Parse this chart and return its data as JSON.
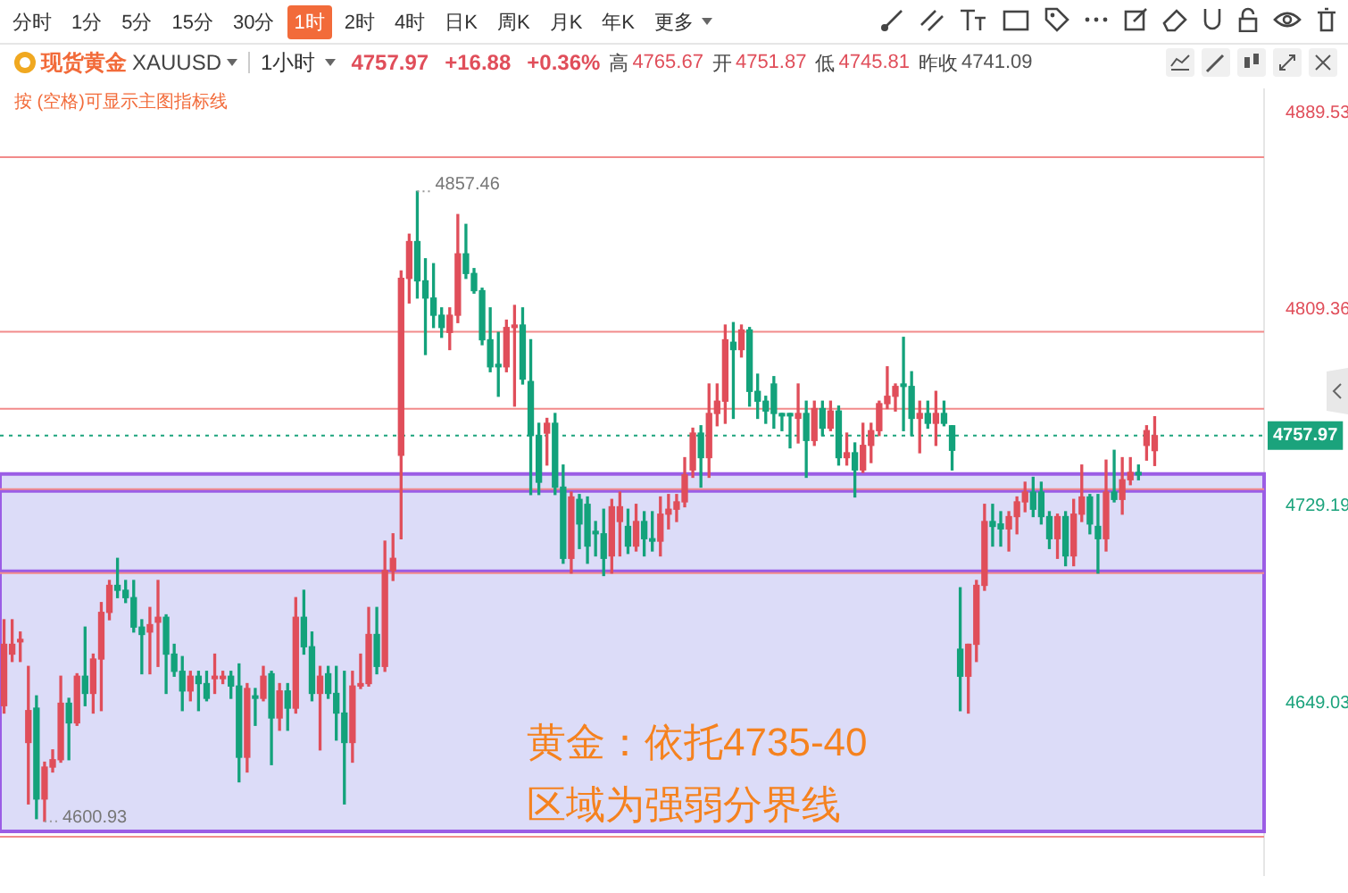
{
  "chart_data": {
    "type": "candlestick",
    "title": "现货黄金 XAUUSD",
    "subtitle": "1小时",
    "annotations": [
      "分时",
      "1分",
      "5分",
      "15分",
      "30分",
      "1时",
      "2时",
      "4时",
      "日K",
      "周K",
      "月K",
      "年K",
      "更多",
      "4757.97",
      "+16.88",
      "+0.36%",
      "高 4765.67",
      "开 4751.87",
      "低 4745.81",
      "昨收 4741.09",
      "按 (空格)可显示主图指标线",
      "黄金：依托4735-40",
      "区域为强弱分界线",
      "4857.46",
      "4600.93"
    ],
    "categories": [
      null,
      null,
      null,
      null,
      null,
      null,
      null,
      null,
      null,
      null,
      null,
      null,
      null,
      null,
      null,
      null,
      null,
      null,
      null,
      null,
      null,
      null,
      null,
      null,
      null,
      null,
      null,
      null,
      null,
      null,
      null,
      null,
      null,
      null,
      null,
      null,
      null,
      null,
      null,
      null,
      null,
      null,
      null,
      null,
      null,
      null,
      null,
      null,
      null,
      null,
      null,
      null,
      null,
      null,
      null,
      null,
      null,
      null,
      null,
      null,
      null,
      null,
      null,
      null,
      null,
      null,
      null,
      null,
      null,
      null,
      null,
      null,
      null,
      null,
      null,
      null,
      null,
      null,
      null,
      null,
      null,
      null,
      null,
      null,
      null,
      null,
      null,
      null,
      null,
      null,
      null,
      null,
      null,
      null,
      null,
      null,
      null,
      null,
      null,
      null,
      null,
      null,
      null,
      null,
      null,
      null,
      null,
      null,
      null,
      null,
      null,
      null,
      null,
      null,
      null,
      null,
      null,
      null,
      null,
      null,
      null,
      null,
      null,
      null,
      null,
      null,
      null,
      null,
      null,
      null,
      null,
      null,
      null,
      null,
      null,
      null,
      null,
      null,
      null,
      null,
      null,
      null,
      null,
      null,
      null,
      null,
      null,
      null,
      null,
      null,
      null,
      null,
      null,
      null,
      null,
      null
    ],
    "ohlc": [
      [
        4648,
        4683,
        4645,
        4673
      ],
      [
        4669,
        4683,
        4666,
        4673
      ],
      [
        4674,
        4678,
        4666,
        4675
      ],
      [
        4633,
        4664,
        4608,
        4646
      ],
      [
        4647,
        4652,
        4602,
        4610
      ],
      [
        4610,
        4625,
        4600.93,
        4623
      ],
      [
        4623,
        4630,
        4621,
        4626
      ],
      [
        4626,
        4660,
        4625,
        4649
      ],
      [
        4649,
        4651,
        4626,
        4641
      ],
      [
        4641,
        4661,
        4640,
        4660
      ],
      [
        4660,
        4680,
        4648,
        4653
      ],
      [
        4653,
        4669,
        4645,
        4667
      ],
      [
        4667,
        4690,
        4646,
        4686
      ],
      [
        4686,
        4699,
        4683,
        4697
      ],
      [
        4697,
        4708,
        4692,
        4695
      ],
      [
        4695,
        4699,
        4690,
        4692
      ],
      [
        4692,
        4699,
        4678,
        4680
      ],
      [
        4680,
        4683,
        4661,
        4677
      ],
      [
        4678,
        4688,
        4661,
        4681
      ],
      [
        4682,
        4699,
        4664,
        4684
      ],
      [
        4684,
        4685,
        4653,
        4669
      ],
      [
        4669,
        4673,
        4660,
        4662
      ],
      [
        4662,
        4668,
        4646,
        4654
      ],
      [
        4654,
        4662,
        4650,
        4660
      ],
      [
        4660,
        4662,
        4646,
        4657
      ],
      [
        4657,
        4662,
        4650,
        4651
      ],
      [
        4659,
        4669,
        4653,
        4660
      ],
      [
        4659,
        4662,
        4657,
        4660
      ],
      [
        4660,
        4662,
        4651,
        4656
      ],
      [
        4656,
        4665,
        4617,
        4627
      ],
      [
        4627,
        4657,
        4621,
        4655
      ],
      [
        4652,
        4655,
        4640,
        4651
      ],
      [
        4651,
        4664,
        4650,
        4660
      ],
      [
        4661,
        4662,
        4624,
        4643
      ],
      [
        4643,
        4657,
        4638,
        4654
      ],
      [
        4654,
        4657,
        4638,
        4647
      ],
      [
        4647,
        4692,
        4645,
        4684
      ],
      [
        4684,
        4695,
        4669,
        4672
      ],
      [
        4672,
        4678,
        4650,
        4653
      ],
      [
        4653,
        4664,
        4630,
        4660
      ],
      [
        4661,
        4664,
        4651,
        4653
      ],
      [
        4653,
        4664,
        4634,
        4645
      ],
      [
        4645,
        4662,
        4608,
        4633
      ],
      [
        4633,
        4662,
        4625,
        4656
      ],
      [
        4656,
        4669,
        4655,
        4657
      ],
      [
        4657,
        4688,
        4656,
        4677
      ],
      [
        4677,
        4688,
        4661,
        4664
      ],
      [
        4664,
        4715,
        4662,
        4703
      ],
      [
        4703,
        4718,
        4699,
        4708
      ],
      [
        4750,
        4825,
        4716,
        4822
      ],
      [
        4822,
        4840,
        4812,
        4837
      ],
      [
        4837,
        4857.46,
        4814,
        4821
      ],
      [
        4821,
        4830,
        4791,
        4814
      ],
      [
        4814,
        4828,
        4802,
        4807
      ],
      [
        4807,
        4810,
        4798,
        4802
      ],
      [
        4800,
        4810,
        4793,
        4807
      ],
      [
        4807,
        4848,
        4804,
        4832
      ],
      [
        4832,
        4844,
        4822,
        4824
      ],
      [
        4824,
        4826,
        4816,
        4817
      ],
      [
        4817,
        4818,
        4795,
        4797
      ],
      [
        4797,
        4810,
        4784,
        4786
      ],
      [
        4787,
        4800,
        4774,
        4786
      ],
      [
        4786,
        4805,
        4784,
        4802
      ],
      [
        4802,
        4811,
        4770,
        4803
      ],
      [
        4803,
        4810,
        4779,
        4781
      ],
      [
        4780,
        4797,
        4734,
        4758
      ],
      [
        4758,
        4763,
        4734,
        4739
      ],
      [
        4759,
        4765,
        4746,
        4763
      ],
      [
        4763,
        4767,
        4734,
        4737
      ],
      [
        4737,
        4746,
        4706,
        4708
      ],
      [
        4708,
        4735,
        4702,
        4733
      ],
      [
        4732,
        4734,
        4712,
        4722
      ],
      [
        4730,
        4733,
        4706,
        4713
      ],
      [
        4719,
        4723,
        4709,
        4718
      ],
      [
        4718,
        4728,
        4701,
        4708
      ],
      [
        4709,
        4732,
        4702,
        4729
      ],
      [
        4723,
        4735,
        4709,
        4729
      ],
      [
        4721,
        4728,
        4710,
        4713
      ],
      [
        4713,
        4730,
        4711,
        4723
      ],
      [
        4723,
        4727,
        4709,
        4716
      ],
      [
        4716,
        4727,
        4711,
        4715
      ],
      [
        4715,
        4733,
        4709,
        4726
      ],
      [
        4726,
        4734,
        4720,
        4728
      ],
      [
        4728,
        4734,
        4723,
        4731
      ],
      [
        4731,
        4749,
        4729,
        4742
      ],
      [
        4744,
        4761,
        4741,
        4759
      ],
      [
        4759,
        4762,
        4737,
        4749
      ],
      [
        4749,
        4779,
        4741,
        4767
      ],
      [
        4767,
        4779,
        4762,
        4772
      ],
      [
        4772,
        4803,
        4763,
        4797
      ],
      [
        4796,
        4804,
        4765,
        4793
      ],
      [
        4793,
        4803,
        4790,
        4801
      ],
      [
        4801,
        4802,
        4770,
        4776
      ],
      [
        4776,
        4783,
        4765,
        4772
      ],
      [
        4772,
        4774,
        4763,
        4768
      ],
      [
        4779,
        4782,
        4761,
        4767
      ],
      [
        4767,
        4767,
        4760,
        4766
      ],
      [
        4767,
        4767,
        4753,
        4766
      ],
      [
        4765,
        4779,
        4755,
        4767
      ],
      [
        4767,
        4772,
        4741,
        4756
      ],
      [
        4756,
        4772,
        4754,
        4769
      ],
      [
        4769,
        4772,
        4758,
        4761
      ],
      [
        4761,
        4772,
        4760,
        4768
      ],
      [
        4768,
        4770,
        4746,
        4749
      ],
      [
        4749,
        4759,
        4746,
        4751
      ],
      [
        4751,
        4755,
        4733,
        4744
      ],
      [
        4744,
        4763,
        4743,
        4754
      ],
      [
        4754,
        4763,
        4747,
        4760
      ],
      [
        4760,
        4772,
        4758,
        4771
      ],
      [
        4771,
        4786,
        4769,
        4774
      ],
      [
        4774,
        4779,
        4768,
        4778
      ],
      [
        4779,
        4798,
        4760,
        4778
      ],
      [
        4778,
        4784,
        4758,
        4765
      ],
      [
        4765,
        4772,
        4751,
        4767
      ],
      [
        4767,
        4772,
        4761,
        4763
      ],
      [
        4763,
        4776,
        4754,
        4767
      ],
      [
        4767,
        4772,
        4762,
        4763
      ],
      [
        4762,
        4762,
        4744,
        4752
      ],
      [
        4671,
        4696,
        4646,
        4660
      ],
      [
        4660,
        4673,
        4645,
        4673
      ],
      [
        4673,
        4699,
        4666,
        4697
      ],
      [
        4697,
        4730,
        4695,
        4723
      ],
      [
        4723,
        4730,
        4713,
        4721
      ],
      [
        4722,
        4727,
        4713,
        4720
      ],
      [
        4720,
        4727,
        4711,
        4725
      ],
      [
        4725,
        4733,
        4718,
        4731
      ],
      [
        4731,
        4739,
        4727,
        4735
      ],
      [
        4735,
        4741,
        4725,
        4728
      ],
      [
        4735,
        4739,
        4722,
        4725
      ],
      [
        4725,
        4727,
        4712,
        4716
      ],
      [
        4716,
        4726,
        4708,
        4725
      ],
      [
        4725,
        4727,
        4705,
        4709
      ],
      [
        4709,
        4732,
        4705,
        4726
      ],
      [
        4726,
        4746,
        4723,
        4733
      ],
      [
        4733,
        4734,
        4718,
        4722
      ],
      [
        4721,
        4734,
        4702,
        4716
      ],
      [
        4716,
        4748,
        4711,
        4735
      ],
      [
        4735,
        4752,
        4731,
        4732
      ],
      [
        4732,
        4749,
        4726,
        4740
      ],
      [
        4740,
        4749,
        4738,
        4743
      ],
      [
        4743,
        4746,
        4740,
        4742
      ],
      [
        4754,
        4762,
        4748,
        4760
      ],
      [
        4751.87,
        4765.67,
        4745.81,
        4757.97
      ],
      null,
      null,
      null,
      null,
      null,
      null,
      null,
      null,
      null,
      null,
      null,
      null,
      null
    ],
    "ylim": [
      4579,
      4899
    ],
    "yticks": [
      4649.03,
      4729.19,
      4809.36,
      4889.53
    ],
    "tick_labels": "y",
    "legend": false,
    "ref_lines": [
      {
        "axis": "y",
        "value": 4871.4,
        "color": "#f28b8b"
      },
      {
        "axis": "y",
        "value": 4800.3,
        "color": "#f28b8b"
      },
      {
        "axis": "y",
        "value": 4768.9,
        "color": "#f28b8b"
      },
      {
        "axis": "y",
        "value": 4736.2,
        "color": "#f28b8b"
      },
      {
        "axis": "y",
        "value": 4702.0,
        "color": "#f28b8b"
      },
      {
        "axis": "y",
        "value": 4594.6,
        "color": "#f28b8b"
      },
      {
        "axis": "y",
        "value": 4757.97,
        "label": "4757.97",
        "color": "#1ba37c",
        "line_style": "dotted"
      }
    ],
    "bands": [
      {
        "axis": "y",
        "from": 4596.8,
        "to": 4704.1,
        "color": "#dcdcf8"
      },
      {
        "axis": "y",
        "from": 4702.7,
        "to": 4736.2,
        "color": "#dcdcf8"
      },
      {
        "axis": "y",
        "from": 4735.5,
        "to": 4742.4,
        "color": "#dcdcf8"
      }
    ]
  }
}
